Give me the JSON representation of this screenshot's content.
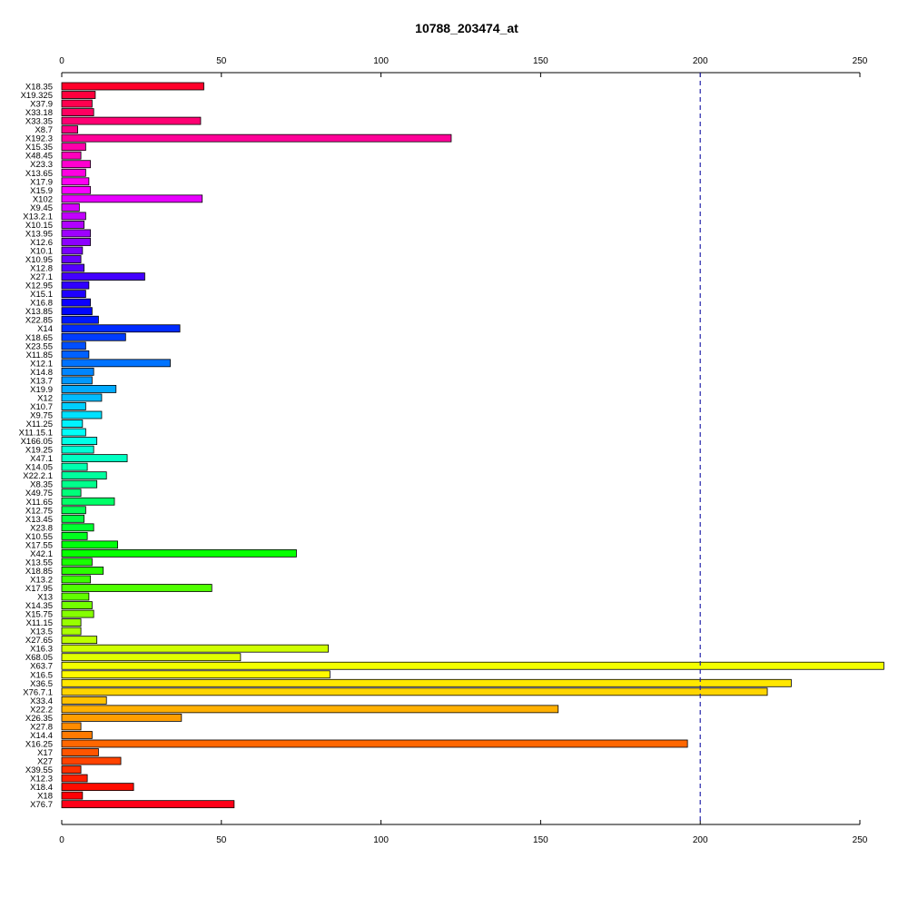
{
  "chart_data": {
    "type": "bar",
    "orientation": "horizontal",
    "title": "10788_203474_at",
    "xlabel": "",
    "ylabel": "",
    "xlim": [
      0,
      250
    ],
    "x_ticks": [
      0,
      50,
      100,
      150,
      200,
      250
    ],
    "x_tick_labels": [
      "0",
      "50",
      "100",
      "150",
      "200",
      "250"
    ],
    "reference_line": {
      "value": 200,
      "style": "dashed",
      "color": "#2222aa"
    },
    "bar_colors": "rainbow gradient from red through magenta, purple, blue, cyan, green, yellow, orange back to red",
    "categories": [
      "X18.35",
      "X19.325",
      "X37.9",
      "X33.18",
      "X33.35",
      "X8.7",
      "X192.3",
      "X15.35",
      "X48.45",
      "X23.3",
      "X13.65",
      "X17.9",
      "X15.9",
      "X102",
      "X9.45",
      "X13.2.1",
      "X10.15",
      "X13.95",
      "X12.6",
      "X10.1",
      "X10.95",
      "X12.8",
      "X27.1",
      "X12.95",
      "X15.1",
      "X16.8",
      "X13.85",
      "X22.85",
      "X14",
      "X18.65",
      "X23.55",
      "X11.85",
      "X12.1",
      "X14.8",
      "X13.7",
      "X19.9",
      "X12",
      "X10.7",
      "X9.75",
      "X11.25",
      "X11.15.1",
      "X166.05",
      "X19.25",
      "X47.1",
      "X14.05",
      "X22.2.1",
      "X8.35",
      "X49.75",
      "X11.65",
      "X12.75",
      "X13.45",
      "X23.8",
      "X10.55",
      "X17.55",
      "X42.1",
      "X13.55",
      "X18.85",
      "X13.2",
      "X17.95",
      "X13",
      "X14.35",
      "X15.75",
      "X11.15",
      "X13.5",
      "X27.65",
      "X16.3",
      "X68.05",
      "X63.7",
      "X16.5",
      "X36.5",
      "X76.7.1",
      "X33.4",
      "X22.2",
      "X26.35",
      "X27.8",
      "X14.4",
      "X16.25",
      "X17",
      "X27",
      "X39.55",
      "X12.3",
      "X18.4",
      "X18",
      "X76.7"
    ],
    "values": [
      44.5,
      10.5,
      9.5,
      10.0,
      43.5,
      5.0,
      122.0,
      7.5,
      6.0,
      9.0,
      7.5,
      8.5,
      9.0,
      44.0,
      5.5,
      7.5,
      7.0,
      9.0,
      9.0,
      6.5,
      6.0,
      7.0,
      26.0,
      8.5,
      7.5,
      9.0,
      9.5,
      11.5,
      37.0,
      20.0,
      7.5,
      8.5,
      34.0,
      10.0,
      9.5,
      17.0,
      12.5,
      7.5,
      12.5,
      6.5,
      7.5,
      11.0,
      10.0,
      20.5,
      8.0,
      14.0,
      11.0,
      6.0,
      16.5,
      7.5,
      7.0,
      10.0,
      8.0,
      17.5,
      73.5,
      9.5,
      13.0,
      9.0,
      47.0,
      8.5,
      9.5,
      10.0,
      6.0,
      6.0,
      11.0,
      83.5,
      56.0,
      257.5,
      84.0,
      228.5,
      221.0,
      14.0,
      155.5,
      37.5,
      6.0,
      9.5,
      196.0,
      11.5,
      18.5,
      6.0,
      8.0,
      22.5,
      6.5,
      54.0
    ]
  }
}
